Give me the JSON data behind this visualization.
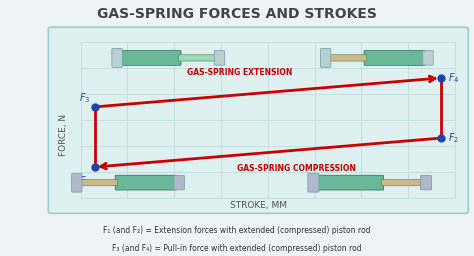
{
  "title": "GAS-SPRING FORCES AND STROKES",
  "title_fontsize": 10,
  "title_color": "#444444",
  "bg_color": "#eef4f4",
  "panel_bg": "#dff0f0",
  "panel_border": "#99cccc",
  "grid_color": "#b8d8d8",
  "ylabel": "FORCE, N",
  "xlabel": "STROKE, MM",
  "label_color": "#555555",
  "label_fontsize": 6.5,
  "point_color": "#2244aa",
  "arrow_color": "#cc0000",
  "arrow_lw": 2.0,
  "ext_label": "GAS-SPRING EXTENSION",
  "comp_label": "GAS-SPRING COMPRESSION",
  "arrow_label_fontsize": 5.5,
  "footnote1": "F₁ (and F₂) = Extension forces with extended (compressed) piston rod",
  "footnote2": "F₃ (and F₄) = Pull-in force with extended (compressed) piston rod",
  "footnote_fontsize": 5.5,
  "footnote_color": "#333333",
  "body_color": "#6ab89a",
  "rod_color_green": "#99ddbb",
  "rod_color_tan": "#ccbb88",
  "cap_color_teal": "#b8d0d0",
  "cap_color_grey": "#b0b8cc"
}
